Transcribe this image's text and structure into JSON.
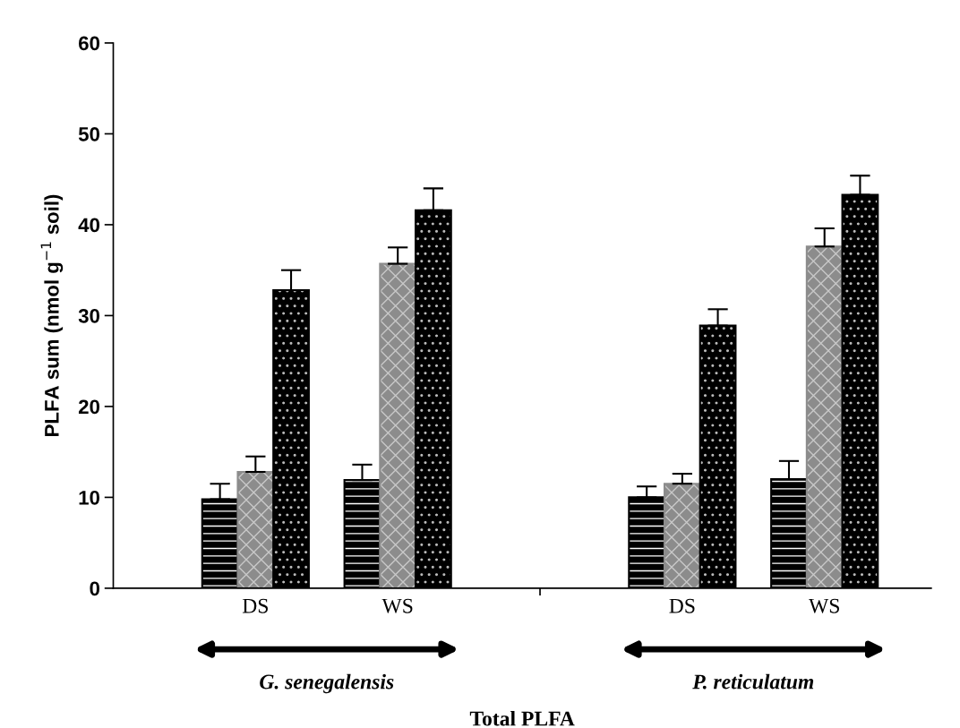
{
  "chart_data": {
    "type": "bar",
    "xlabel": "Total PLFA",
    "ylabel": "PLFA sum (nmol g$^{−1}$ soil)",
    "categories": [
      "DS",
      "WS",
      null,
      "DS",
      "WS"
    ],
    "series": [
      {
        "color": "#000000",
        "values": [
          9.8,
          11.9,
          null,
          10.0,
          12.0
        ],
        "errors": [
          1.7,
          1.7,
          null,
          1.2,
          2.0
        ]
      },
      {
        "color": "#8c8c8c",
        "values": [
          12.8,
          35.7,
          null,
          11.5,
          37.6
        ],
        "errors": [
          1.7,
          1.8,
          null,
          1.1,
          2.0
        ]
      },
      {
        "color": "#000000",
        "values": [
          32.8,
          41.6,
          null,
          28.9,
          43.3
        ],
        "errors": [
          2.2,
          2.4,
          null,
          1.8,
          2.1
        ]
      }
    ],
    "annotations": [
      "G. senegalensis",
      "P. reticulatum"
    ],
    "ylim": [
      0,
      60
    ],
    "yticks": [
      0,
      10,
      20,
      30,
      40,
      50,
      60
    ],
    "grid": false,
    "legend": false
  }
}
